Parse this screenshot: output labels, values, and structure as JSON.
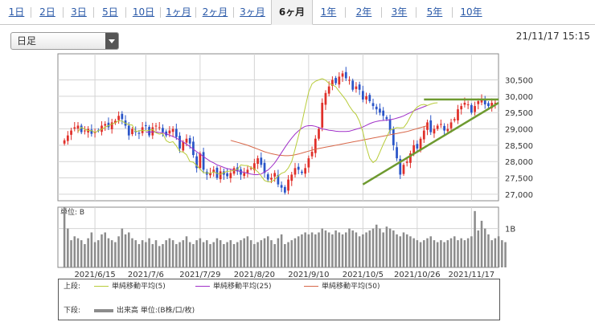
{
  "tabs": [
    {
      "label": "1日",
      "active": false
    },
    {
      "label": "2日",
      "active": false
    },
    {
      "label": "3日",
      "active": false
    },
    {
      "label": "5日",
      "active": false
    },
    {
      "label": "10日",
      "active": false
    },
    {
      "label": "1ヶ月",
      "active": false
    },
    {
      "label": "2ヶ月",
      "active": false
    },
    {
      "label": "3ヶ月",
      "active": false
    },
    {
      "label": "6ヶ月",
      "active": true
    },
    {
      "label": "1年",
      "active": false
    },
    {
      "label": "2年",
      "active": false
    },
    {
      "label": "3年",
      "active": false
    },
    {
      "label": "5年",
      "active": false
    },
    {
      "label": "10年",
      "active": false
    }
  ],
  "period_select": {
    "value": "日足"
  },
  "timestamp": "21/11/17 15:15",
  "legend": {
    "upper_label": "上段:",
    "lower_label": "下段:",
    "ma5": "単純移動平均(5)",
    "ma25": "単純移動平均(25)",
    "ma50": "単純移動平均(50)",
    "volume": "出来高 単位:(B株/口/枚)"
  },
  "colors": {
    "up": "#e0302a",
    "down": "#2a55c8",
    "ma5": "#b8cc3a",
    "ma25": "#a030c8",
    "ma50": "#d8684a",
    "trendline": "#6e9a30",
    "volume": "#8c8c8c"
  },
  "chart_data": {
    "type": "candlestick",
    "price": {
      "ylim": [
        26800,
        31300
      ],
      "yticks": [
        27000,
        27500,
        28000,
        28500,
        29000,
        29500,
        30000,
        30500
      ],
      "ytick_labels": [
        "27,000",
        "27,500",
        "28,000",
        "28,500",
        "29,000",
        "29,500",
        "30,000",
        "30,500"
      ],
      "closes": [
        28650,
        28800,
        28950,
        29050,
        29100,
        28900,
        28950,
        29000,
        28850,
        28900,
        28950,
        29100,
        29150,
        29050,
        29200,
        29250,
        29400,
        29300,
        29100,
        28800,
        29000,
        28900,
        28850,
        29050,
        29100,
        28800,
        29050,
        29100,
        29050,
        28900,
        28800,
        28950,
        29000,
        28750,
        28400,
        28600,
        28700,
        28550,
        28200,
        27800,
        28250,
        27750,
        27600,
        27650,
        27750,
        27500,
        27700,
        27600,
        27550,
        27650,
        27800,
        27700,
        27600,
        27650,
        27750,
        27800,
        27950,
        28100,
        27900,
        27650,
        27450,
        27500,
        27650,
        27300,
        27200,
        27050,
        27450,
        27600,
        27800,
        27750,
        27650,
        27800,
        28100,
        28300,
        28700,
        29000,
        29800,
        30100,
        30300,
        30500,
        30400,
        30600,
        30700,
        30550,
        30500,
        30200,
        30300,
        30200,
        29900,
        30000,
        29850,
        29700,
        29600,
        29500,
        29400,
        29300,
        28950,
        28500,
        28100,
        27600,
        27900,
        28000,
        28250,
        28500,
        28400,
        28700,
        28950,
        29200,
        28900,
        29000,
        29100,
        29150,
        28950,
        29000,
        29200,
        29300,
        29600,
        29700,
        29800,
        29750,
        29500,
        29700,
        29850,
        29900,
        29750,
        29700,
        29800,
        29800
      ],
      "ma5": {
        "start": 4,
        "values": [
          28910,
          29050,
          28990,
          28950,
          28950,
          28890,
          28950,
          28990,
          29050,
          29100,
          29150,
          29190,
          29250,
          29240,
          29170,
          29130,
          29120,
          28920,
          28940,
          28960,
          28940,
          28960,
          28980,
          28880,
          28840,
          28860,
          28640,
          28580,
          28610,
          28480,
          28310,
          28290,
          28210,
          28000,
          27980,
          27880,
          27770,
          27660,
          27650,
          27640,
          27680,
          27640,
          27610,
          27660,
          27700,
          27710,
          27730,
          27760,
          27900,
          27880,
          27880,
          27820,
          27770,
          27690,
          27560,
          27420,
          27380,
          27380,
          27450,
          27560,
          27640,
          27680,
          27800,
          28000,
          28380,
          28780,
          29180,
          29660,
          30130,
          30380,
          30460,
          30500,
          30540,
          30490,
          30390,
          30350,
          30290,
          30150,
          30020,
          29880,
          29700,
          29550,
          29440,
          29230,
          28900,
          28450,
          28100,
          27970,
          28050,
          28290,
          28530,
          28750,
          28970,
          29000,
          29040,
          29030,
          29040,
          29180,
          29380,
          29560,
          29670,
          29730,
          29750,
          29720,
          29760,
          29790,
          29800
        ]
      },
      "ma25": {
        "start": 24,
        "values": [
          28900,
          28905,
          28910,
          28905,
          28890,
          28880,
          28850,
          28810,
          28770,
          28720,
          28660,
          28600,
          28530,
          28460,
          28380,
          28300,
          28230,
          28150,
          28080,
          28010,
          27960,
          27900,
          27860,
          27820,
          27780,
          27770,
          27740,
          27720,
          27690,
          27670,
          27640,
          27620,
          27600,
          27600,
          27620,
          27680,
          27740,
          27840,
          27960,
          28110,
          28270,
          28430,
          28580,
          28720,
          28840,
          28940,
          29020,
          29080,
          29100,
          29100,
          29080,
          29040,
          29000,
          28980,
          28960,
          28950,
          28930,
          28920,
          28920,
          28920,
          28930,
          28960,
          28990,
          29020,
          29060,
          29110,
          29160,
          29200,
          29230,
          29250,
          29260,
          29270,
          29280,
          29300,
          29330,
          29360,
          29400,
          29450,
          29500,
          29550,
          29600,
          29640,
          29680,
          29720
        ]
      },
      "ma50": {
        "start": 49,
        "values": [
          28650,
          28620,
          28590,
          28560,
          28530,
          28500,
          28460,
          28420,
          28380,
          28340,
          28300,
          28270,
          28240,
          28220,
          28200,
          28190,
          28180,
          28180,
          28190,
          28210,
          28230,
          28260,
          28290,
          28320,
          28350,
          28380,
          28400,
          28420,
          28440,
          28460,
          28480,
          28500,
          28520,
          28540,
          28560,
          28580,
          28600,
          28620,
          28640,
          28660,
          28680,
          28700,
          28720,
          28740,
          28760,
          28780,
          28800,
          28820,
          28840,
          28860,
          28880,
          28900,
          28920,
          28950,
          28980,
          29010,
          29040,
          29070,
          29100
        ]
      },
      "trendlines": [
        {
          "from": [
            88,
            27300
          ],
          "to": [
            128,
            29800
          ]
        },
        {
          "from": [
            106,
            29900
          ],
          "to": [
            128,
            29900
          ]
        }
      ]
    },
    "volume": {
      "unit_label": "単位: B",
      "tick_label": "1B",
      "tick_value": 1.0,
      "ylim": [
        0,
        1.55
      ],
      "values": [
        1.55,
        1.0,
        0.7,
        0.8,
        0.75,
        0.7,
        0.6,
        0.75,
        0.9,
        0.65,
        0.7,
        0.85,
        0.9,
        0.75,
        0.7,
        0.65,
        0.8,
        1.0,
        0.85,
        0.9,
        0.75,
        0.7,
        0.6,
        0.7,
        0.65,
        0.75,
        0.6,
        0.7,
        0.55,
        0.6,
        0.7,
        0.75,
        0.7,
        0.6,
        0.65,
        0.7,
        0.8,
        0.65,
        0.6,
        0.7,
        0.75,
        0.65,
        0.7,
        0.6,
        0.65,
        0.75,
        0.7,
        0.6,
        0.65,
        0.7,
        0.6,
        0.65,
        0.7,
        0.75,
        0.8,
        0.7,
        0.6,
        0.65,
        0.7,
        0.75,
        0.8,
        0.7,
        0.6,
        0.75,
        0.85,
        0.6,
        0.65,
        0.7,
        0.75,
        0.8,
        0.85,
        0.9,
        0.85,
        0.9,
        0.85,
        0.9,
        1.0,
        0.95,
        0.9,
        0.85,
        0.95,
        0.9,
        0.85,
        0.9,
        1.0,
        0.95,
        0.9,
        0.8,
        0.85,
        0.9,
        0.95,
        1.0,
        1.1,
        1.0,
        0.9,
        1.05,
        1.0,
        0.95,
        0.85,
        0.8,
        0.9,
        0.85,
        0.8,
        0.75,
        0.7,
        0.65,
        0.7,
        0.75,
        0.8,
        0.7,
        0.65,
        0.7,
        0.65,
        0.7,
        0.75,
        0.8,
        0.7,
        0.75,
        0.7,
        0.75,
        0.8,
        1.45,
        0.95,
        1.2,
        1.0,
        0.85,
        0.7,
        0.75,
        0.8,
        0.7,
        0.65
      ]
    },
    "x_labels": [
      "2021/6/15",
      "2021/7/6",
      "2021/7/29",
      "2021/8/20",
      "2021/9/10",
      "2021/10/5",
      "2021/10/26",
      "2021/11/17"
    ],
    "x_label_index": [
      9,
      24,
      40,
      56,
      72,
      88,
      104,
      120
    ]
  }
}
